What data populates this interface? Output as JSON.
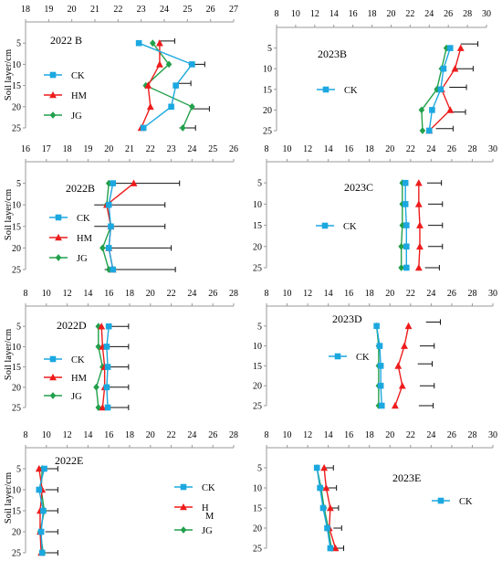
{
  "figure": {
    "colors": {
      "CK": "#1ba8e0",
      "HM": "#ee1c1c",
      "JG": "#22a04b",
      "err": "#111111",
      "axis": "#999999"
    }
  },
  "chart_data": [
    {
      "id": "2022B_top",
      "type": "line",
      "panel_label": "2022 B",
      "ylabel": "Soil layer/cm",
      "x_ticks": [
        18,
        19,
        20,
        21,
        22,
        23,
        24,
        25,
        26,
        27
      ],
      "xlim": [
        18,
        27
      ],
      "y_ticks": [
        5,
        10,
        15,
        20,
        25
      ],
      "ylim": [
        0,
        25
      ],
      "y_inverted": true,
      "legend": [
        "CK",
        "HM",
        "JG"
      ],
      "series": [
        {
          "name": "CK",
          "marker": "square",
          "x": [
            22.9,
            25.2,
            24.5,
            24.3,
            23.1
          ],
          "y": [
            5,
            10,
            15,
            20,
            25
          ]
        },
        {
          "name": "HM",
          "marker": "triangle",
          "x": [
            23.8,
            23.8,
            23.3,
            23.4,
            23.0
          ],
          "y": [
            5,
            10,
            15,
            20,
            25
          ]
        },
        {
          "name": "JG",
          "marker": "diamond",
          "x": [
            23.5,
            24.2,
            23.2,
            25.2,
            24.8
          ],
          "y": [
            5,
            10,
            15,
            20,
            25
          ]
        }
      ],
      "error_bars": [
        {
          "x": 24.1,
          "y": 4.5,
          "half": 0.35
        },
        {
          "x": 25.4,
          "y": 10,
          "half": 0.35
        },
        {
          "x": 24.8,
          "y": 14.5,
          "half": 0.35
        },
        {
          "x": 25.6,
          "y": 20.5,
          "half": 0.35
        },
        {
          "x": 25.0,
          "y": 25,
          "half": 0.35
        }
      ]
    },
    {
      "id": "2023B",
      "type": "line",
      "panel_label": "2023B",
      "ylabel": "",
      "x_ticks": [
        8,
        10,
        12,
        14,
        16,
        18,
        20,
        22,
        24,
        26,
        28,
        30
      ],
      "xlim": [
        8,
        30
      ],
      "y_ticks": [
        5,
        10,
        15,
        20,
        25
      ],
      "ylim": [
        0,
        25
      ],
      "y_inverted": true,
      "legend": [
        "CK"
      ],
      "series": [
        {
          "name": "CK",
          "marker": "square",
          "x": [
            26.2,
            25.5,
            25.2,
            24.3,
            24.0
          ],
          "y": [
            5,
            10,
            15,
            20,
            25
          ]
        },
        {
          "name": "HM",
          "marker": "triangle",
          "x": [
            27.3,
            26.7,
            25.3,
            26.2,
            24.0
          ],
          "y": [
            5,
            10,
            15,
            20,
            25
          ]
        },
        {
          "name": "JG",
          "marker": "diamond",
          "x": [
            25.8,
            25.3,
            24.8,
            23.2,
            23.3
          ],
          "y": [
            5,
            10,
            15,
            20,
            25
          ]
        }
      ],
      "error_bars": [
        {
          "x": 28.2,
          "y": 4,
          "half": 0.9
        },
        {
          "x": 27.7,
          "y": 10,
          "half": 0.9
        },
        {
          "x": 27.0,
          "y": 14.5,
          "half": 0.9
        },
        {
          "x": 26.9,
          "y": 20.5,
          "half": 0.9
        },
        {
          "x": 25.6,
          "y": 24.5,
          "half": 0.9
        }
      ]
    },
    {
      "id": "2022B_mid",
      "type": "line",
      "panel_label": "2022B",
      "ylabel": "Soil layer/cm",
      "x_ticks": [
        16,
        17,
        18,
        19,
        20,
        21,
        22,
        23,
        24,
        25,
        26
      ],
      "xlim": [
        16,
        26
      ],
      "y_ticks": [
        5,
        10,
        15,
        20,
        25
      ],
      "ylim": [
        0,
        25
      ],
      "y_inverted": true,
      "legend": [
        "CK",
        "HM",
        "JG"
      ],
      "series": [
        {
          "name": "CK",
          "marker": "square",
          "x": [
            20.2,
            20.0,
            20.1,
            20.0,
            20.2
          ],
          "y": [
            5,
            10,
            15,
            20,
            25
          ]
        },
        {
          "name": "HM",
          "marker": "triangle",
          "x": [
            21.2,
            19.9,
            20.1,
            20.0,
            20.2
          ],
          "y": [
            5,
            10,
            15,
            20,
            25
          ]
        },
        {
          "name": "JG",
          "marker": "diamond",
          "x": [
            20.0,
            19.9,
            20.1,
            19.7,
            20.0
          ],
          "y": [
            5,
            10,
            15,
            20,
            25
          ]
        }
      ],
      "error_bars": [
        {
          "x": 21.7,
          "y": 5,
          "half": 1.7
        },
        {
          "x": 21.0,
          "y": 10,
          "half": 1.7
        },
        {
          "x": 21.0,
          "y": 15,
          "half": 1.7
        },
        {
          "x": 21.3,
          "y": 20,
          "half": 1.7
        },
        {
          "x": 21.5,
          "y": 25,
          "half": 1.7
        }
      ]
    },
    {
      "id": "2023C",
      "type": "line",
      "panel_label": "2023C",
      "ylabel": "",
      "x_ticks": [
        8,
        10,
        12,
        14,
        16,
        18,
        20,
        22,
        24,
        26,
        28,
        30
      ],
      "xlim": [
        8,
        30
      ],
      "y_ticks": [
        5,
        10,
        15,
        20,
        25
      ],
      "ylim": [
        0,
        25
      ],
      "y_inverted": true,
      "legend": [
        "CK"
      ],
      "series": [
        {
          "name": "CK",
          "marker": "square",
          "x": [
            21.5,
            21.5,
            21.6,
            21.6,
            21.6
          ],
          "y": [
            5,
            10,
            15,
            20,
            25
          ]
        },
        {
          "name": "HM",
          "marker": "triangle",
          "x": [
            22.8,
            22.8,
            22.9,
            22.9,
            22.8
          ],
          "y": [
            5,
            10,
            15,
            20,
            25
          ]
        },
        {
          "name": "JG",
          "marker": "diamond",
          "x": [
            21.2,
            21.2,
            21.2,
            21.1,
            21.1
          ],
          "y": [
            5,
            10,
            15,
            20,
            25
          ]
        }
      ],
      "error_bars": [
        {
          "x": 24.3,
          "y": 5,
          "half": 0.7
        },
        {
          "x": 24.4,
          "y": 10,
          "half": 0.7
        },
        {
          "x": 24.4,
          "y": 15,
          "half": 0.7
        },
        {
          "x": 24.4,
          "y": 20,
          "half": 0.7
        },
        {
          "x": 24.1,
          "y": 25,
          "half": 0.7
        }
      ]
    },
    {
      "id": "2022D",
      "type": "line",
      "panel_label": "2022D",
      "ylabel": "Soil layer/cm",
      "x_ticks": [
        8,
        10,
        12,
        14,
        16,
        18,
        20,
        22,
        24,
        26,
        28
      ],
      "xlim": [
        8,
        28
      ],
      "y_ticks": [
        5,
        10,
        15,
        20,
        25
      ],
      "ylim": [
        0,
        25
      ],
      "y_inverted": true,
      "legend": [
        "CK",
        "HM",
        "JG"
      ],
      "series": [
        {
          "name": "CK",
          "marker": "square",
          "x": [
            16.0,
            15.8,
            15.9,
            15.8,
            15.9
          ],
          "y": [
            5,
            10,
            15,
            20,
            25
          ]
        },
        {
          "name": "HM",
          "marker": "triangle",
          "x": [
            15.3,
            15.4,
            15.6,
            15.6,
            15.4
          ],
          "y": [
            5,
            10,
            15,
            20,
            25
          ]
        },
        {
          "name": "JG",
          "marker": "diamond",
          "x": [
            15.0,
            15.0,
            15.4,
            14.8,
            15.0
          ],
          "y": [
            5,
            10,
            15,
            20,
            25
          ]
        }
      ],
      "error_bars": [
        {
          "x": 16.8,
          "y": 5,
          "half": 1.1
        },
        {
          "x": 16.8,
          "y": 10,
          "half": 1.1
        },
        {
          "x": 16.8,
          "y": 15,
          "half": 1.1
        },
        {
          "x": 16.8,
          "y": 20,
          "half": 1.1
        },
        {
          "x": 16.8,
          "y": 25,
          "half": 1.1
        }
      ]
    },
    {
      "id": "2023D",
      "type": "line",
      "panel_label": "2023D",
      "ylabel": "",
      "x_ticks": [
        8,
        10,
        12,
        14,
        16,
        18,
        20,
        22,
        24,
        26,
        28,
        30
      ],
      "xlim": [
        8,
        30
      ],
      "y_ticks": [
        5,
        10,
        15,
        20,
        25
      ],
      "ylim": [
        0,
        25
      ],
      "y_inverted": true,
      "legend": [
        "CK"
      ],
      "series": [
        {
          "name": "CK",
          "marker": "square",
          "x": [
            18.7,
            19.0,
            19.1,
            19.1,
            19.2
          ],
          "y": [
            5,
            10,
            15,
            20,
            25
          ]
        },
        {
          "name": "HM",
          "marker": "triangle",
          "x": [
            21.8,
            21.4,
            20.8,
            21.2,
            20.5
          ],
          "y": [
            5,
            10,
            15,
            20,
            25
          ]
        },
        {
          "name": "JG",
          "marker": "diamond",
          "x": [
            18.7,
            18.9,
            18.9,
            18.9,
            18.9
          ],
          "y": [
            5,
            10,
            15,
            20,
            25
          ]
        }
      ],
      "error_bars": [
        {
          "x": 24.2,
          "y": 4,
          "half": 0.7
        },
        {
          "x": 23.6,
          "y": 10,
          "half": 0.7
        },
        {
          "x": 23.4,
          "y": 14.5,
          "half": 0.7
        },
        {
          "x": 23.6,
          "y": 20,
          "half": 0.7
        },
        {
          "x": 23.5,
          "y": 25,
          "half": 0.7
        }
      ]
    },
    {
      "id": "2022E",
      "type": "line",
      "panel_label": "2022E",
      "ylabel": "Soil layer/cm",
      "x_ticks": [
        8,
        10,
        12,
        14,
        16,
        18,
        20,
        22,
        24,
        26,
        28
      ],
      "xlim": [
        8,
        28
      ],
      "y_ticks": [
        5,
        10,
        15,
        20,
        25
      ],
      "ylim": [
        0,
        25
      ],
      "y_inverted": true,
      "legend": [
        "CK",
        "H",
        "M",
        "JG"
      ],
      "series": [
        {
          "name": "CK",
          "marker": "square",
          "x": [
            9.8,
            9.3,
            9.7,
            9.5,
            9.6
          ],
          "y": [
            5,
            10,
            15,
            20,
            25
          ]
        },
        {
          "name": "HM",
          "marker": "triangle",
          "x": [
            9.3,
            9.6,
            9.4,
            9.4,
            9.5
          ],
          "y": [
            5,
            10,
            15,
            20,
            25
          ]
        },
        {
          "name": "JG",
          "marker": "diamond",
          "x": [
            9.6,
            9.5,
            9.8,
            9.4,
            9.7
          ],
          "y": [
            5,
            10,
            15,
            20,
            25
          ]
        }
      ],
      "error_bars": [
        {
          "x": 10.5,
          "y": 5,
          "half": 0.6
        },
        {
          "x": 10.5,
          "y": 10,
          "half": 0.6
        },
        {
          "x": 10.5,
          "y": 15,
          "half": 0.6
        },
        {
          "x": 10.5,
          "y": 20,
          "half": 0.6
        },
        {
          "x": 10.5,
          "y": 25,
          "half": 0.6
        }
      ]
    },
    {
      "id": "2023E",
      "type": "line",
      "panel_label": "2023E",
      "ylabel": "",
      "x_ticks": [
        8,
        10,
        12,
        14,
        16,
        18,
        20,
        22,
        24,
        26,
        28,
        30
      ],
      "xlim": [
        8,
        30
      ],
      "y_ticks": [
        5,
        10,
        15,
        20,
        25
      ],
      "ylim": [
        0,
        25
      ],
      "y_inverted": true,
      "legend": [
        "CK"
      ],
      "series": [
        {
          "name": "CK",
          "marker": "square",
          "x": [
            12.9,
            13.2,
            13.5,
            13.9,
            14.2
          ],
          "y": [
            5,
            10,
            15,
            20,
            25
          ]
        },
        {
          "name": "HM",
          "marker": "triangle",
          "x": [
            13.6,
            13.8,
            14.2,
            14.1,
            14.7
          ],
          "y": [
            5,
            10,
            15,
            20,
            25
          ]
        },
        {
          "name": "JG",
          "marker": "diamond",
          "x": [
            12.9,
            13.3,
            13.6,
            14.0,
            14.3
          ],
          "y": [
            5,
            10,
            15,
            20,
            25
          ]
        }
      ],
      "error_bars": [
        {
          "x": 14.1,
          "y": 5,
          "half": 0.4
        },
        {
          "x": 14.4,
          "y": 10,
          "half": 0.4
        },
        {
          "x": 14.6,
          "y": 15,
          "half": 0.4
        },
        {
          "x": 14.9,
          "y": 20,
          "half": 0.4
        },
        {
          "x": 15.1,
          "y": 25,
          "half": 0.4
        }
      ]
    }
  ]
}
